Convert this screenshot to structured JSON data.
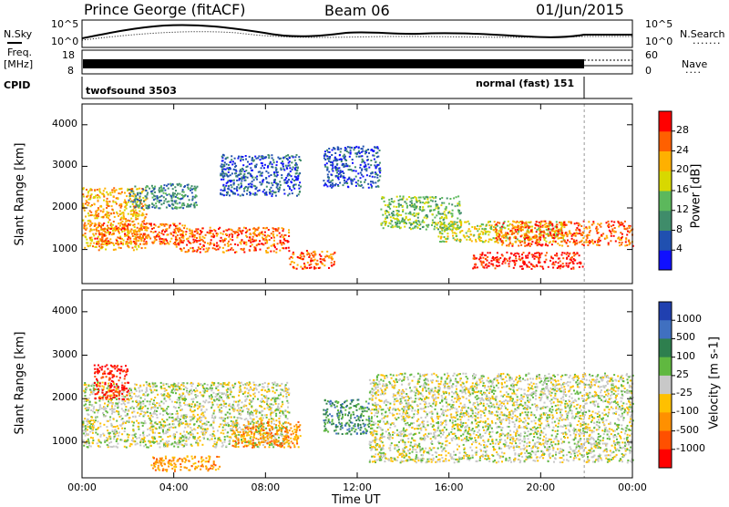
{
  "header": {
    "station": "Prince George (fitACF)",
    "beam": "Beam 06",
    "date": "01/Jun/2015"
  },
  "strips": {
    "nsky_label": "N.Sky",
    "nsearch_label": "N.Search",
    "nsky_ticks": [
      "10^5",
      "10^0"
    ],
    "freq_label_1": "Freq.",
    "freq_label_2": "[MHz]",
    "freq_ticks": [
      "18",
      "8"
    ],
    "nave_label": "Nave",
    "nave_ticks": [
      "60",
      "0"
    ],
    "cpid_label": "CPID",
    "cpid_modes": [
      {
        "name": "twofsound 3503",
        "start_hour": 0,
        "end_hour": 21.9
      },
      {
        "name": "normal (fast) 151",
        "start_hour": 21.9,
        "end_hour": 24
      }
    ]
  },
  "chart_data": [
    {
      "type": "heatmap",
      "panel": "power",
      "ylabel": "Slant Range [km]",
      "ylim": [
        180,
        4500
      ],
      "yticks": [
        1000,
        2000,
        3000,
        4000
      ],
      "xlim": [
        0,
        24
      ],
      "colorbar": {
        "label": "Power [dB]",
        "ticks": [
          "4",
          "8",
          "12",
          "16",
          "20",
          "24",
          "28"
        ],
        "colors": [
          "#1010ff",
          "#2050b0",
          "#3f8c6a",
          "#5cb85c",
          "#d8d800",
          "#ffb000",
          "#ff6000",
          "#ff0000"
        ]
      },
      "scatter_bands": [
        {
          "t0": 0.0,
          "t1": 2.8,
          "r0": 1000,
          "r1": 2500,
          "level": 5
        },
        {
          "t0": 0.5,
          "t1": 4.5,
          "r0": 1150,
          "r1": 1650,
          "level": 6
        },
        {
          "t0": 2.0,
          "t1": 5.0,
          "r0": 2000,
          "r1": 2600,
          "level": 2
        },
        {
          "t0": 4.0,
          "t1": 9.0,
          "r0": 950,
          "r1": 1550,
          "level": 6
        },
        {
          "t0": 6.0,
          "t1": 9.5,
          "r0": 2300,
          "r1": 3300,
          "level": 1
        },
        {
          "t0": 9.0,
          "t1": 11.0,
          "r0": 550,
          "r1": 1000,
          "level": 6
        },
        {
          "t0": 10.5,
          "t1": 13.0,
          "r0": 2500,
          "r1": 3500,
          "level": 1
        },
        {
          "t0": 13.0,
          "t1": 16.5,
          "r0": 1500,
          "r1": 2300,
          "level": 3
        },
        {
          "t0": 15.5,
          "t1": 21.0,
          "r0": 1200,
          "r1": 1700,
          "level": 4
        },
        {
          "t0": 17.0,
          "t1": 21.8,
          "r0": 550,
          "r1": 950,
          "level": 7
        },
        {
          "t0": 18.0,
          "t1": 24.0,
          "r0": 1100,
          "r1": 1700,
          "level": 6
        }
      ]
    },
    {
      "type": "heatmap",
      "panel": "velocity",
      "ylabel": "Slant Range [km]",
      "ylim": [
        180,
        4500
      ],
      "yticks": [
        1000,
        2000,
        3000,
        4000
      ],
      "xlabel": "Time UT",
      "xlim": [
        0,
        24
      ],
      "xticks": [
        "00:00",
        "04:00",
        "08:00",
        "12:00",
        "16:00",
        "20:00",
        "00:00"
      ],
      "colorbar": {
        "label": "Velocity [m s-1]",
        "ticks": [
          "1000",
          "500",
          "100",
          "25",
          "-25",
          "-100",
          "-500",
          "-1000"
        ],
        "colors": [
          "#2040b0",
          "#4070c0",
          "#2e7f4e",
          "#60b840",
          "#c8c8c8",
          "#ffc000",
          "#ff9000",
          "#ff5000",
          "#ff0000"
        ]
      },
      "scatter_bands": [
        {
          "t0": 0.0,
          "t1": 9.0,
          "r0": 900,
          "r1": 2400,
          "level": 4
        },
        {
          "t0": 0.5,
          "t1": 2.0,
          "r0": 2000,
          "r1": 2800,
          "level": 8
        },
        {
          "t0": 3.0,
          "t1": 6.0,
          "r0": 350,
          "r1": 700,
          "level": 6
        },
        {
          "t0": 6.5,
          "t1": 9.5,
          "r0": 900,
          "r1": 1500,
          "level": 6
        },
        {
          "t0": 10.5,
          "t1": 12.5,
          "r0": 1200,
          "r1": 2000,
          "level": 2
        },
        {
          "t0": 12.5,
          "t1": 24.0,
          "r0": 550,
          "r1": 2600,
          "level": 4
        }
      ]
    }
  ]
}
